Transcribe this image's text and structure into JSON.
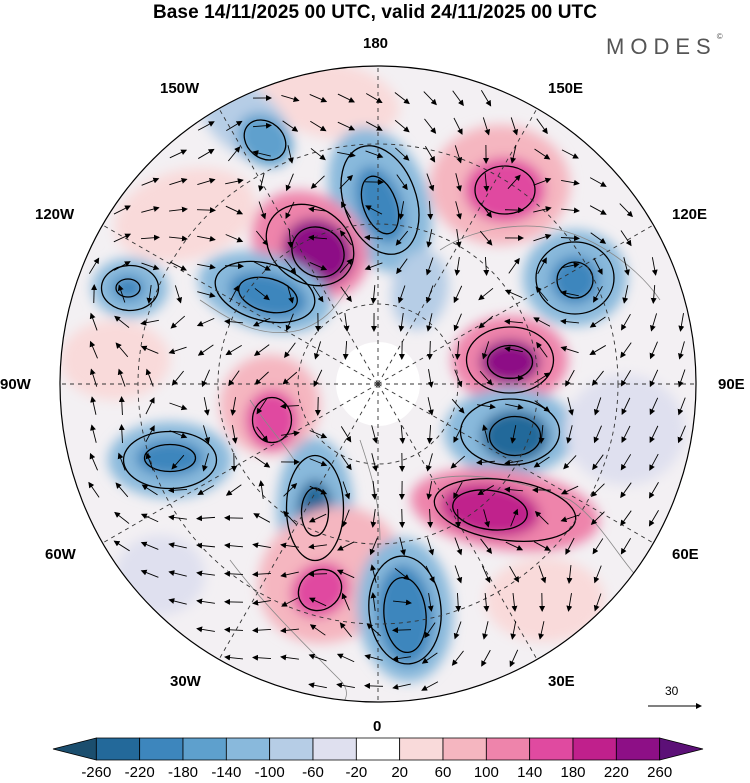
{
  "title": "Base 14/11/2025 00 UTC, valid 24/11/2025 00 UTC",
  "brand": "MODES",
  "brand_mark": "©",
  "longitude_labels": {
    "lon_180": "180",
    "lon_150e": "150E",
    "lon_120e": "120E",
    "lon_90e": "90E",
    "lon_60e": "60E",
    "lon_30e": "30E",
    "lon_0": "0",
    "lon_30w": "30W",
    "lon_60w": "60W",
    "lon_90w": "90W",
    "lon_120w": "120W",
    "lon_150w": "150W"
  },
  "reference_vector": "30",
  "colorbar": {
    "labels": [
      "-260",
      "-220",
      "-180",
      "-140",
      "-100",
      "-60",
      "-20",
      "20",
      "60",
      "100",
      "140",
      "180",
      "220",
      "260"
    ],
    "colors": [
      "#1b4e6e",
      "#23699a",
      "#3d86bd",
      "#5ea0cd",
      "#89b9dc",
      "#b6cde6",
      "#dfe0ef",
      "#ffffff",
      "#f9dada",
      "#f5b6c0",
      "#ee84ab",
      "#e04aa0",
      "#c0208c",
      "#8d0f86",
      "#5c1077"
    ]
  }
}
